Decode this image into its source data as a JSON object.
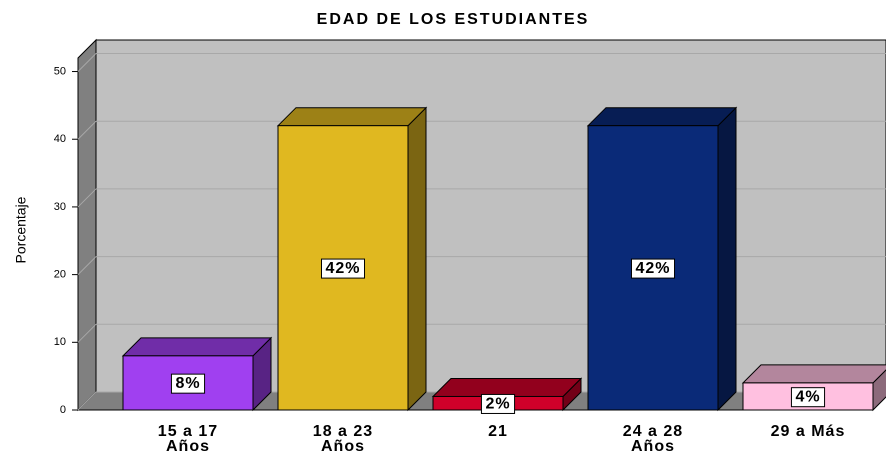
{
  "chart_data": {
    "type": "bar3d",
    "title": "EDAD DE LOS ESTUDIANTES",
    "y_label": "Porcentaje",
    "categories": [
      "15 a 17\nAños",
      "18 a 23\nAños",
      "21",
      "24 a 28\nAños",
      "29 a Más"
    ],
    "values": [
      8,
      42,
      2,
      42,
      4
    ],
    "value_labels": [
      "8%",
      "42%",
      "2%",
      "42%",
      "4%"
    ],
    "colors": [
      "#a040f0",
      "#e0b820",
      "#d0002a",
      "#0a2a78",
      "#ffc0e0"
    ],
    "ylim": [
      0,
      52
    ],
    "yticks": [
      0,
      10,
      20,
      30,
      40,
      50
    ],
    "grid": true
  }
}
